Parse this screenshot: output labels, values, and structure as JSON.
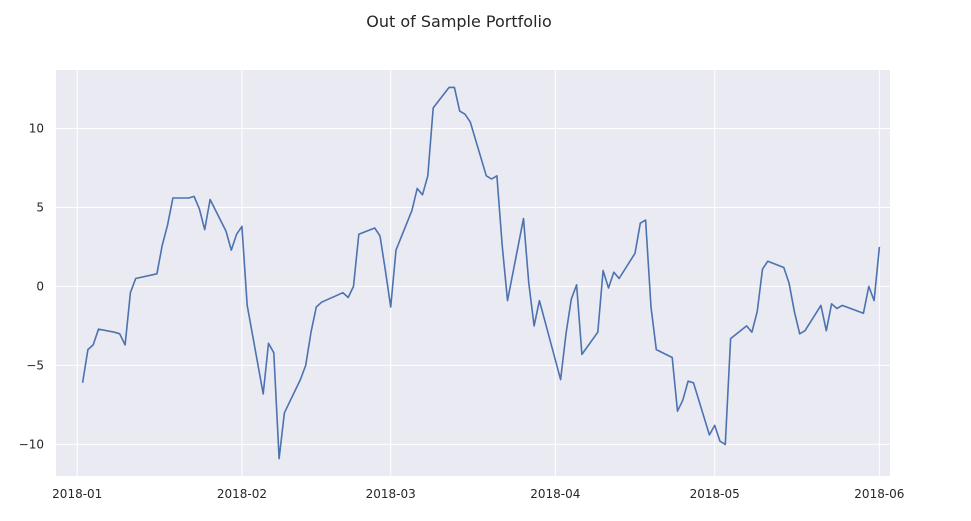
{
  "chart_data": {
    "type": "line",
    "title": "Out of Sample Portfolio",
    "xlabel": "",
    "ylabel": "",
    "grid": true,
    "legend": "none",
    "x_ticks": [
      "2018-01",
      "2018-02",
      "2018-03",
      "2018-04",
      "2018-05",
      "2018-06"
    ],
    "y_ticks": [
      -10,
      -5,
      0,
      5,
      10
    ],
    "y_tick_labels": [
      "−10",
      "−5",
      "0",
      "5",
      "10"
    ],
    "xlim": [
      "2017-12-28",
      "2018-06-03"
    ],
    "ylim": [
      -12,
      13.7
    ],
    "colors": {
      "line": "#4c72b0",
      "plot_background": "#eaeaf2",
      "grid": "#ffffff"
    },
    "series": [
      {
        "x": [
          "2018-01-02",
          "2018-01-03",
          "2018-01-04",
          "2018-01-05",
          "2018-01-08",
          "2018-01-09",
          "2018-01-10",
          "2018-01-11",
          "2018-01-12",
          "2018-01-16",
          "2018-01-17",
          "2018-01-18",
          "2018-01-19",
          "2018-01-22",
          "2018-01-23",
          "2018-01-24",
          "2018-01-25",
          "2018-01-26",
          "2018-01-29",
          "2018-01-30",
          "2018-01-31",
          "2018-02-01",
          "2018-02-02",
          "2018-02-05",
          "2018-02-06",
          "2018-02-07",
          "2018-02-08",
          "2018-02-09",
          "2018-02-12",
          "2018-02-13",
          "2018-02-14",
          "2018-02-15",
          "2018-02-16",
          "2018-02-20",
          "2018-02-21",
          "2018-02-22",
          "2018-02-23",
          "2018-02-26",
          "2018-02-27",
          "2018-02-28",
          "2018-03-01",
          "2018-03-02",
          "2018-03-05",
          "2018-03-06",
          "2018-03-07",
          "2018-03-08",
          "2018-03-09",
          "2018-03-12",
          "2018-03-13",
          "2018-03-14",
          "2018-03-15",
          "2018-03-16",
          "2018-03-19",
          "2018-03-20",
          "2018-03-21",
          "2018-03-22",
          "2018-03-23",
          "2018-03-26",
          "2018-03-27",
          "2018-03-28",
          "2018-03-29",
          "2018-04-02",
          "2018-04-03",
          "2018-04-04",
          "2018-04-05",
          "2018-04-06",
          "2018-04-09",
          "2018-04-10",
          "2018-04-11",
          "2018-04-12",
          "2018-04-13",
          "2018-04-16",
          "2018-04-17",
          "2018-04-18",
          "2018-04-19",
          "2018-04-20",
          "2018-04-23",
          "2018-04-24",
          "2018-04-25",
          "2018-04-26",
          "2018-04-27",
          "2018-04-30",
          "2018-05-01",
          "2018-05-02",
          "2018-05-03",
          "2018-05-04",
          "2018-05-07",
          "2018-05-08",
          "2018-05-09",
          "2018-05-10",
          "2018-05-11",
          "2018-05-14",
          "2018-05-15",
          "2018-05-16",
          "2018-05-17",
          "2018-05-18",
          "2018-05-21",
          "2018-05-22",
          "2018-05-23",
          "2018-05-24",
          "2018-05-25",
          "2018-05-29",
          "2018-05-30",
          "2018-05-31",
          "2018-06-01"
        ],
        "values": [
          -6.1,
          -4.0,
          -3.7,
          -2.7,
          -2.9,
          -3.0,
          -3.7,
          -0.4,
          0.5,
          0.8,
          2.6,
          3.9,
          5.6,
          5.6,
          5.7,
          4.9,
          3.6,
          5.5,
          3.5,
          2.3,
          3.3,
          3.8,
          -1.2,
          -6.8,
          -3.6,
          -4.2,
          -10.9,
          -8.0,
          -5.9,
          -5.0,
          -2.9,
          -1.3,
          -1.0,
          -0.4,
          -0.7,
          0.0,
          3.3,
          3.7,
          3.2,
          1.0,
          -1.3,
          2.3,
          4.8,
          6.2,
          5.8,
          7.0,
          11.3,
          12.6,
          12.6,
          11.1,
          10.9,
          10.4,
          7.0,
          6.8,
          7.0,
          2.6,
          -0.9,
          4.3,
          0.2,
          -2.5,
          -0.9,
          -5.9,
          -3.0,
          -0.8,
          0.1,
          -4.3,
          -2.9,
          1.0,
          -0.1,
          0.9,
          0.5,
          2.1,
          4.0,
          4.2,
          -1.3,
          -4.0,
          -4.5,
          -7.9,
          -7.2,
          -6.0,
          -6.1,
          -9.4,
          -8.8,
          -9.8,
          -10.0,
          -3.3,
          -2.5,
          -2.9,
          -1.6,
          1.1,
          1.6,
          1.2,
          0.2,
          -1.6,
          -3.0,
          -2.8,
          -1.2,
          -2.8,
          -1.1,
          -1.4,
          -1.2,
          -1.7,
          0.0,
          -0.9,
          2.5
        ]
      }
    ]
  }
}
